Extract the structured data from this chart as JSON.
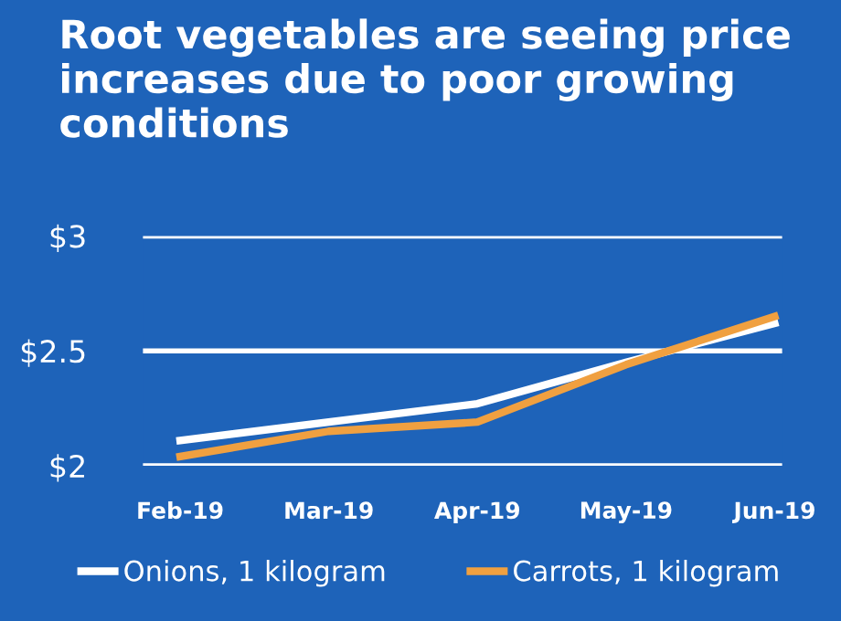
{
  "chart_data": {
    "type": "line",
    "title": "Root vegetables are seeing price increases due to poor growing conditions",
    "categories": [
      "Feb-19",
      "Mar-19",
      "Apr-19",
      "May-19",
      "Jun-19"
    ],
    "series": [
      {
        "name": "Onions, 1 kilogram",
        "color": "#ffffff",
        "values": [
          2.11,
          2.19,
          2.27,
          2.45,
          2.62
        ]
      },
      {
        "name": "Carrots, 1 kilogram",
        "color": "#f0a040",
        "values": [
          2.04,
          2.15,
          2.19,
          2.44,
          2.65
        ]
      }
    ],
    "ylim": [
      2,
      3
    ],
    "yticks": [
      {
        "value": 2,
        "label": "$2"
      },
      {
        "value": 2.5,
        "label": "$2.5"
      },
      {
        "value": 3,
        "label": "$3"
      }
    ],
    "grid": "y",
    "legend": "bottom",
    "marker": "none",
    "line_style": "solid"
  }
}
